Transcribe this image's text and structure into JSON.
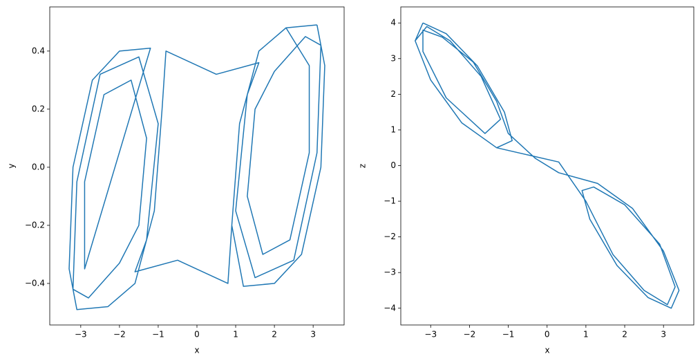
{
  "chart_data": [
    {
      "type": "line",
      "x_label": "x",
      "y_label": "y",
      "color": "#1f77b4",
      "xlim": [
        -3.8,
        3.8
      ],
      "ylim": [
        -0.543,
        0.552
      ],
      "xticks": [
        {
          "value": -3,
          "label": "−3"
        },
        {
          "value": -2,
          "label": "−2"
        },
        {
          "value": -1,
          "label": "−1"
        },
        0,
        1,
        2,
        3
      ],
      "yticks": [
        {
          "value": -0.4,
          "label": "−0.4"
        },
        {
          "value": -0.2,
          "label": "−0.2"
        },
        {
          "value": 0,
          "label": "0.0"
        },
        0.2,
        0.4
      ],
      "x": [
        3.1,
        3.3,
        3.2,
        2.7,
        2.0,
        1.2,
        0.9,
        1.1,
        1.6,
        2.3,
        2.9,
        2.9,
        2.4,
        1.7,
        1.3,
        1.5,
        2.0,
        2.8,
        3.2,
        3.1,
        2.5,
        1.5,
        1.0,
        1.3,
        1.6,
        0.5,
        -0.8,
        -0.9,
        -1.1,
        -1.6,
        -2.3,
        -3.1,
        -3.3,
        -3.2,
        -2.7,
        -2.0,
        -1.2,
        -2.9,
        -2.9,
        -2.4,
        -1.7,
        -1.3,
        -1.5,
        -2.0,
        -2.8,
        -3.2,
        -3.1,
        -2.5,
        -1.5,
        -1.0,
        -1.3,
        -1.6,
        -0.5,
        0.8,
        0.9,
        1.1,
        1.6,
        2.3,
        3.1
      ],
      "y": [
        0.49,
        0.35,
        0.0,
        -0.3,
        -0.4,
        -0.41,
        -0.2,
        0.15,
        0.4,
        0.48,
        0.35,
        0.05,
        -0.25,
        -0.3,
        -0.1,
        0.2,
        0.33,
        0.45,
        0.42,
        0.05,
        -0.32,
        -0.38,
        -0.15,
        0.25,
        0.36,
        0.32,
        0.4,
        0.2,
        -0.15,
        -0.4,
        -0.48,
        -0.49,
        -0.35,
        0.0,
        0.3,
        0.4,
        0.41,
        -0.35,
        -0.05,
        0.25,
        0.3,
        0.1,
        -0.2,
        -0.33,
        -0.45,
        -0.42,
        -0.05,
        0.32,
        0.38,
        0.15,
        -0.25,
        -0.36,
        -0.32,
        -0.4,
        -0.2,
        0.15,
        0.4,
        0.48,
        0.49
      ]
    },
    {
      "type": "line",
      "x_label": "x",
      "y_label": "z",
      "color": "#1f77b4",
      "xlim": [
        -3.77,
        3.78
      ],
      "ylim": [
        -4.47,
        4.45
      ],
      "xticks": [
        {
          "value": -3,
          "label": "−3"
        },
        {
          "value": -2,
          "label": "−2"
        },
        {
          "value": -1,
          "label": "−1"
        },
        0,
        1,
        2,
        3
      ],
      "yticks": [
        {
          "value": -4,
          "label": "−4"
        },
        {
          "value": -3,
          "label": "−3"
        },
        {
          "value": -2,
          "label": "−2"
        },
        {
          "value": -1,
          "label": "−1"
        },
        0,
        1,
        2,
        3,
        4
      ],
      "x": [
        -3.2,
        -2.6,
        -1.8,
        -1.1,
        -0.9,
        -1.3,
        -2.2,
        -3.0,
        -3.4,
        -3.1,
        -2.5,
        -1.7,
        -1.2,
        -1.6,
        -2.6,
        -3.2,
        -3.2,
        -2.7,
        -1.9,
        -1.3,
        -1.0,
        -0.3,
        0.3,
        1.3,
        2.2,
        3.0,
        3.4,
        3.2,
        2.6,
        1.8,
        1.1,
        0.9,
        1.2,
        2.0,
        2.9,
        3.3,
        3.1,
        2.5,
        1.7,
        1.0,
        0.3,
        -0.5,
        -1.3,
        -2.2,
        -3.0,
        -3.4,
        -3.2
      ],
      "y": [
        4.0,
        3.7,
        2.8,
        1.5,
        0.7,
        0.5,
        1.2,
        2.4,
        3.5,
        3.9,
        3.5,
        2.5,
        1.3,
        0.9,
        1.9,
        3.2,
        3.8,
        3.6,
        2.9,
        1.8,
        0.9,
        0.2,
        -0.2,
        -0.5,
        -1.2,
        -2.4,
        -3.5,
        -4.0,
        -3.7,
        -2.8,
        -1.5,
        -0.7,
        -0.6,
        -1.1,
        -2.2,
        -3.4,
        -3.9,
        -3.5,
        -2.5,
        -1.0,
        0.1,
        0.3,
        0.5,
        1.2,
        2.4,
        3.5,
        4.0
      ]
    }
  ]
}
